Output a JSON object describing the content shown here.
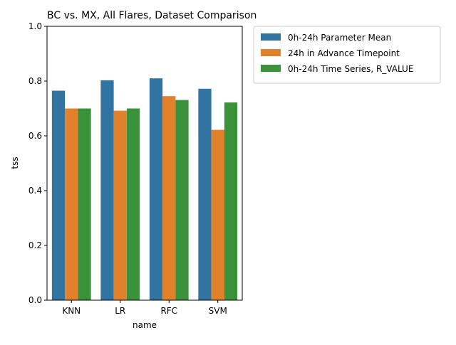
{
  "chart_data": {
    "type": "bar",
    "title": "BC vs. MX, All Flares, Dataset Comparison",
    "xlabel": "name",
    "ylabel": "tss",
    "ylim": [
      0,
      1.0
    ],
    "yticks": [
      "0.0",
      "0.2",
      "0.4",
      "0.6",
      "0.8",
      "1.0"
    ],
    "grid": false,
    "legend_position": "outside-top-right",
    "categories": [
      "KNN",
      "LR",
      "RFC",
      "SVM"
    ],
    "series": [
      {
        "name": "0h-24h Parameter Mean",
        "color": "#3274a1",
        "values": [
          0.765,
          0.803,
          0.81,
          0.772
        ]
      },
      {
        "name": "24h in Advance Timepoint",
        "color": "#e1812c",
        "values": [
          0.7,
          0.692,
          0.745,
          0.622
        ]
      },
      {
        "name": "0h-24h Time Series, R_VALUE",
        "color": "#3a923a",
        "values": [
          0.7,
          0.7,
          0.731,
          0.722
        ]
      }
    ]
  }
}
